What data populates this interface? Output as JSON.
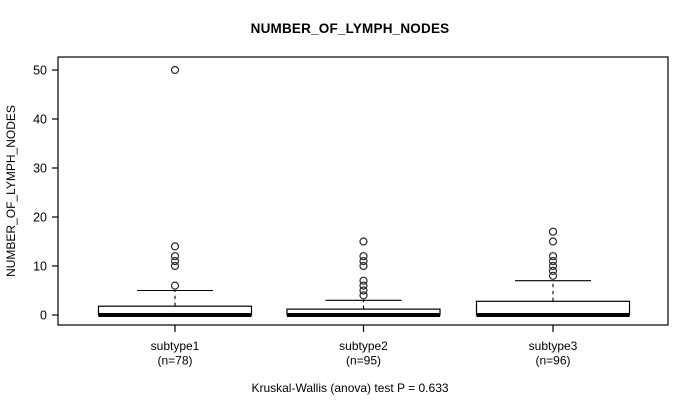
{
  "chart_data": {
    "type": "boxplot",
    "title": "NUMBER_OF_LYMPH_NODES",
    "ylabel": "NUMBER_OF_LYMPH_NODES",
    "xlabel": "",
    "caption": "Kruskal-Wallis (anova) test P = 0.633",
    "stats_test": {
      "name": "Kruskal-Wallis (anova) test",
      "p_value": 0.633
    },
    "ylim": [
      0,
      52
    ],
    "yticks": [
      0,
      10,
      20,
      30,
      40,
      50
    ],
    "grid": false,
    "legend": "none",
    "groups": [
      {
        "label": "subtype1",
        "n_label": "(n=78)",
        "n": 78,
        "q1": 0,
        "median": 0,
        "q3": 1.8,
        "whisker_low": 0,
        "whisker_high": 5,
        "outliers": [
          6,
          10,
          11,
          12,
          14,
          50
        ]
      },
      {
        "label": "subtype2",
        "n_label": "(n=95)",
        "n": 95,
        "q1": 0,
        "median": 0,
        "q3": 1.2,
        "whisker_low": 0,
        "whisker_high": 3,
        "outliers": [
          4,
          5,
          6,
          7,
          10,
          11,
          12,
          15
        ]
      },
      {
        "label": "subtype3",
        "n_label": "(n=96)",
        "n": 96,
        "q1": 0,
        "median": 0,
        "q3": 2.8,
        "whisker_low": 0,
        "whisker_high": 7,
        "outliers": [
          8,
          9,
          10,
          11,
          12,
          15,
          17
        ]
      }
    ],
    "colors": {
      "stroke": "#000000",
      "box_fill": "#ffffff",
      "background": "#ffffff"
    }
  }
}
